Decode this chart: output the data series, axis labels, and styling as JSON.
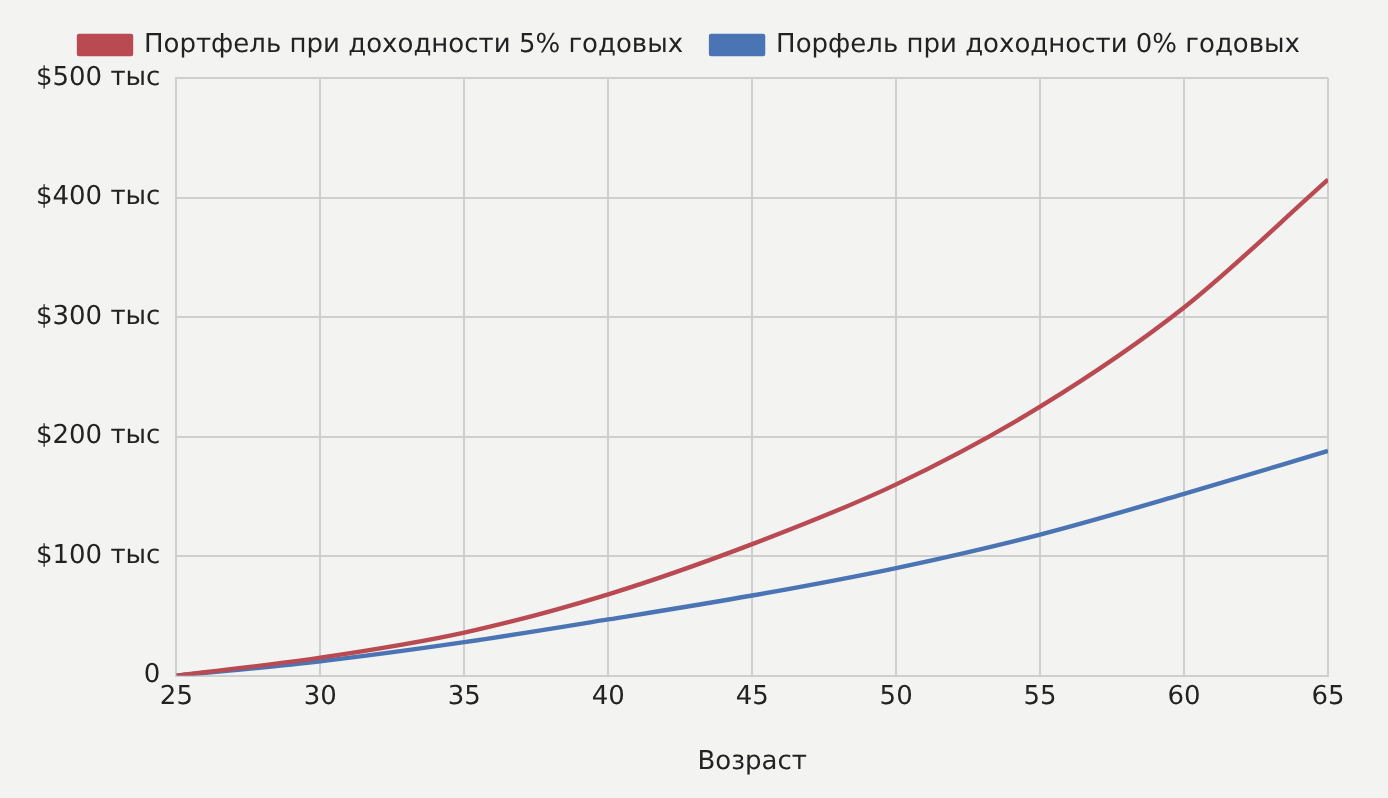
{
  "chart_data": {
    "type": "line",
    "xlabel": "Возраст",
    "x": [
      25,
      30,
      35,
      40,
      45,
      50,
      55,
      60,
      65
    ],
    "series": [
      {
        "name": "Портфель при доходности 5% годовых",
        "color": "#b94a52",
        "values": [
          0,
          15,
          36,
          68,
          110,
          160,
          225,
          308,
          415
        ]
      },
      {
        "name": "Порфель при доходности 0% годовых",
        "color": "#4a74b4",
        "values": [
          0,
          12,
          28,
          47,
          67,
          90,
          118,
          152,
          188
        ]
      }
    ],
    "xlim": [
      25,
      65
    ],
    "xticks": [
      25,
      30,
      35,
      40,
      45,
      50,
      55,
      60,
      65
    ],
    "ylim": [
      0,
      500
    ],
    "yticks": [
      0,
      {
        "value": 100,
        "label": "$100 тыс"
      },
      {
        "value": 200,
        "label": "$200 тыс"
      },
      {
        "value": 300,
        "label": "$300 тыс"
      },
      {
        "value": 400,
        "label": "$400 тыс"
      },
      {
        "value": 500,
        "label": "$500 тыс"
      }
    ],
    "grid": true,
    "legend": "top",
    "marker": "none",
    "line_style": "solid"
  }
}
